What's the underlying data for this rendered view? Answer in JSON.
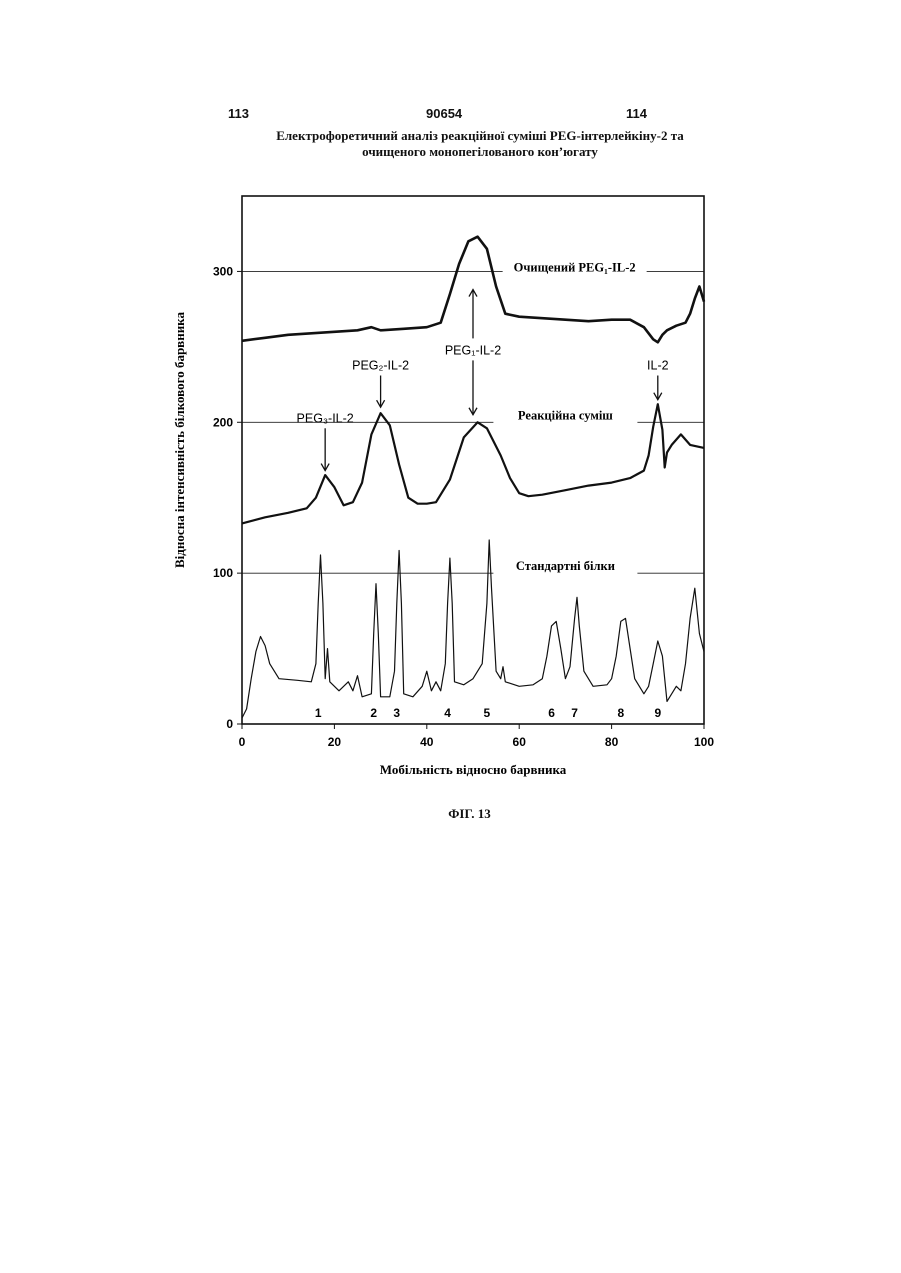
{
  "header": {
    "page_left": "113",
    "patent_number": "90654",
    "page_right": "114",
    "title_line1": "Електрофоретичний аналіз реакційної суміші PEG-інтерлейкіну-2 та",
    "title_line2": "очищеного монопегілованого кон’югату"
  },
  "figure_label": "ФІГ. 13",
  "colors": {
    "ink": "#111111",
    "paper": "#ffffff"
  },
  "chart_data": {
    "type": "line",
    "title": "Електрофоретичний аналіз реакційної суміші PEG-інтерлейкіну-2 та очищеного монопегілованого кон’югату",
    "xlabel": "Мобільність відносно барвника",
    "ylabel": "Відносна інтенсивність білкового барвника",
    "xlim": [
      0,
      100
    ],
    "ylim": [
      0,
      350
    ],
    "x_ticks": [
      "0",
      "20",
      "40",
      "60",
      "80",
      "100"
    ],
    "y_ticks": [
      "0",
      "100",
      "200",
      "300"
    ],
    "reference_lines": [
      100,
      200,
      300
    ],
    "series": [
      {
        "name": "Очищений PEG₁-IL-2",
        "stroke": 2.6,
        "points": [
          [
            0,
            254
          ],
          [
            5,
            256
          ],
          [
            10,
            258
          ],
          [
            15,
            259
          ],
          [
            20,
            260
          ],
          [
            25,
            261
          ],
          [
            28,
            263
          ],
          [
            30,
            261
          ],
          [
            35,
            262
          ],
          [
            40,
            263
          ],
          [
            43,
            266
          ],
          [
            45,
            285
          ],
          [
            47,
            305
          ],
          [
            49,
            320
          ],
          [
            51,
            323
          ],
          [
            53,
            315
          ],
          [
            55,
            290
          ],
          [
            57,
            272
          ],
          [
            60,
            270
          ],
          [
            65,
            269
          ],
          [
            70,
            268
          ],
          [
            75,
            267
          ],
          [
            80,
            268
          ],
          [
            84,
            268
          ],
          [
            87,
            263
          ],
          [
            89,
            255
          ],
          [
            90,
            253
          ],
          [
            91,
            258
          ],
          [
            92,
            261
          ],
          [
            94,
            264
          ],
          [
            96,
            266
          ],
          [
            97,
            272
          ],
          [
            98,
            282
          ],
          [
            99,
            290
          ],
          [
            100,
            280
          ]
        ]
      },
      {
        "name": "Реакційна суміш",
        "stroke": 2.2,
        "points": [
          [
            0,
            133
          ],
          [
            5,
            137
          ],
          [
            10,
            140
          ],
          [
            14,
            143
          ],
          [
            16,
            150
          ],
          [
            18,
            165
          ],
          [
            20,
            157
          ],
          [
            22,
            145
          ],
          [
            24,
            147
          ],
          [
            26,
            160
          ],
          [
            28,
            192
          ],
          [
            30,
            206
          ],
          [
            32,
            198
          ],
          [
            34,
            172
          ],
          [
            36,
            150
          ],
          [
            38,
            146
          ],
          [
            40,
            146
          ],
          [
            42,
            147
          ],
          [
            45,
            162
          ],
          [
            48,
            190
          ],
          [
            51,
            200
          ],
          [
            53,
            196
          ],
          [
            56,
            178
          ],
          [
            58,
            163
          ],
          [
            60,
            153
          ],
          [
            62,
            151
          ],
          [
            65,
            152
          ],
          [
            70,
            155
          ],
          [
            75,
            158
          ],
          [
            80,
            160
          ],
          [
            84,
            163
          ],
          [
            87,
            168
          ],
          [
            88,
            178
          ],
          [
            89,
            197
          ],
          [
            90,
            212
          ],
          [
            91,
            195
          ],
          [
            91.5,
            170
          ],
          [
            92,
            180
          ],
          [
            93,
            185
          ],
          [
            95,
            192
          ],
          [
            97,
            185
          ],
          [
            100,
            183
          ]
        ]
      },
      {
        "name": "Стандартні білки",
        "stroke": 1.2,
        "points": [
          [
            0,
            4
          ],
          [
            1,
            10
          ],
          [
            2,
            30
          ],
          [
            3,
            48
          ],
          [
            4,
            58
          ],
          [
            5,
            52
          ],
          [
            6,
            40
          ],
          [
            8,
            30
          ],
          [
            12,
            29
          ],
          [
            15,
            28
          ],
          [
            16,
            40
          ],
          [
            16.5,
            80
          ],
          [
            17,
            112
          ],
          [
            17.5,
            80
          ],
          [
            18,
            30
          ],
          [
            18.5,
            50
          ],
          [
            19,
            28
          ],
          [
            21,
            22
          ],
          [
            23,
            28
          ],
          [
            24,
            22
          ],
          [
            25,
            32
          ],
          [
            26,
            18
          ],
          [
            28,
            20
          ],
          [
            28.5,
            60
          ],
          [
            29,
            93
          ],
          [
            29.5,
            60
          ],
          [
            30,
            18
          ],
          [
            32,
            18
          ],
          [
            33,
            35
          ],
          [
            33.5,
            80
          ],
          [
            34,
            115
          ],
          [
            34.5,
            80
          ],
          [
            35,
            20
          ],
          [
            37,
            18
          ],
          [
            39,
            25
          ],
          [
            40,
            35
          ],
          [
            41,
            22
          ],
          [
            42,
            28
          ],
          [
            43,
            22
          ],
          [
            44,
            40
          ],
          [
            44.5,
            80
          ],
          [
            45,
            110
          ],
          [
            45.5,
            80
          ],
          [
            46,
            28
          ],
          [
            48,
            26
          ],
          [
            50,
            30
          ],
          [
            52,
            40
          ],
          [
            53,
            80
          ],
          [
            53.5,
            122
          ],
          [
            54,
            90
          ],
          [
            55,
            35
          ],
          [
            56,
            30
          ],
          [
            56.5,
            38
          ],
          [
            57,
            28
          ],
          [
            60,
            25
          ],
          [
            63,
            26
          ],
          [
            65,
            30
          ],
          [
            66,
            45
          ],
          [
            67,
            65
          ],
          [
            68,
            68
          ],
          [
            69,
            50
          ],
          [
            70,
            30
          ],
          [
            71,
            38
          ],
          [
            72,
            70
          ],
          [
            72.5,
            84
          ],
          [
            73,
            65
          ],
          [
            74,
            35
          ],
          [
            76,
            25
          ],
          [
            79,
            26
          ],
          [
            80,
            30
          ],
          [
            81,
            45
          ],
          [
            82,
            68
          ],
          [
            83,
            70
          ],
          [
            84,
            50
          ],
          [
            85,
            30
          ],
          [
            87,
            20
          ],
          [
            88,
            25
          ],
          [
            89,
            40
          ],
          [
            90,
            55
          ],
          [
            91,
            45
          ],
          [
            92,
            15
          ],
          [
            93,
            20
          ],
          [
            94,
            25
          ],
          [
            95,
            22
          ],
          [
            96,
            40
          ],
          [
            97,
            70
          ],
          [
            98,
            90
          ],
          [
            99,
            60
          ],
          [
            100,
            48
          ]
        ]
      }
    ],
    "series_labels": [
      {
        "text": "Очищений PEG₁-IL-2",
        "x": 72,
        "y": 300
      },
      {
        "text": "Реакційна суміш",
        "x": 70,
        "y": 202
      },
      {
        "text": "Стандартні білки",
        "x": 70,
        "y": 102
      }
    ],
    "peak_labels": [
      {
        "text": "PEG₃-IL-2",
        "x": 18,
        "y": 200,
        "arrow_to": 168
      },
      {
        "text": "PEG₂-IL-2",
        "x": 30,
        "y": 235,
        "arrow_to": 210
      },
      {
        "text": "PEG₁-IL-2",
        "x": 50,
        "y": 245,
        "arrow_up_to": 288,
        "arrow_down_to": 205
      },
      {
        "text": "IL-2",
        "x": 90,
        "y": 235,
        "arrow_to": 215
      }
    ],
    "standard_labels": [
      {
        "text": "1",
        "x": 16.5
      },
      {
        "text": "2",
        "x": 28.5
      },
      {
        "text": "3",
        "x": 33.5
      },
      {
        "text": "4",
        "x": 44.5
      },
      {
        "text": "5",
        "x": 53
      },
      {
        "text": "6",
        "x": 67
      },
      {
        "text": "7",
        "x": 72
      },
      {
        "text": "8",
        "x": 82
      },
      {
        "text": "9",
        "x": 90
      }
    ]
  }
}
